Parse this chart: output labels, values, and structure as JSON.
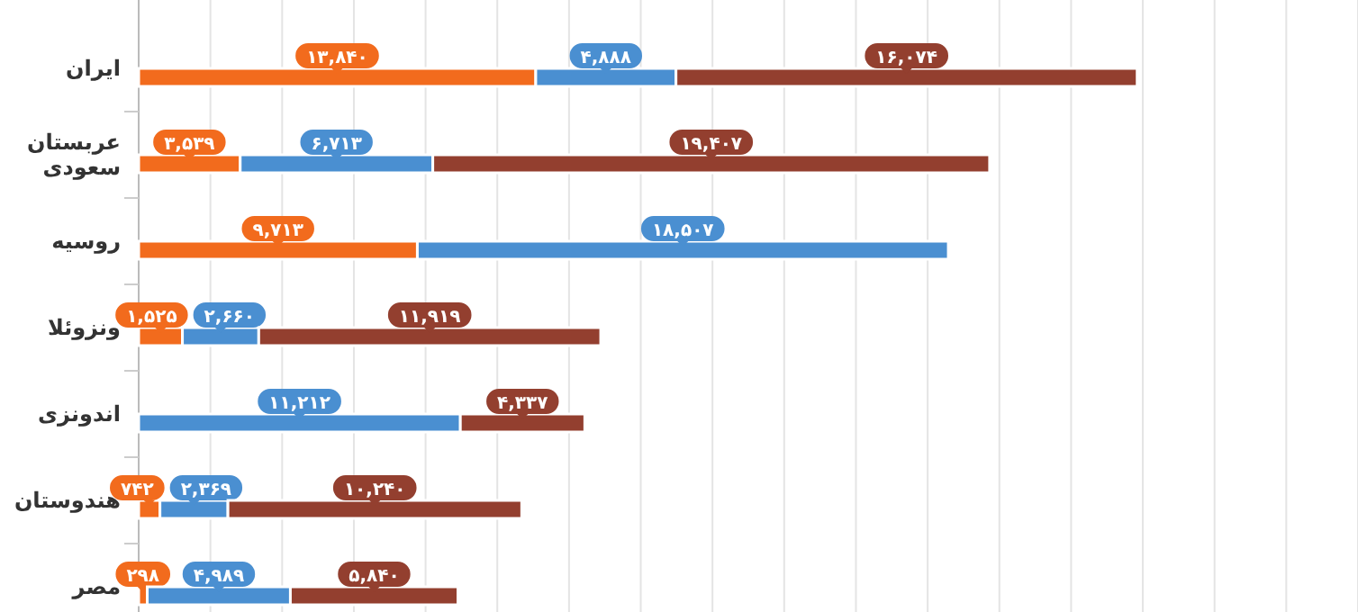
{
  "chart_data": {
    "type": "bar",
    "orientation": "horizontal",
    "stacked": true,
    "categories": [
      "ایران",
      "عربستان سعودی",
      "روسیه",
      "ونزوئلا",
      "اندونزی",
      "هندوستان",
      "مصر"
    ],
    "series": [
      {
        "color": "#f26b1d",
        "values": [
          13840,
          3539,
          9713,
          1525,
          null,
          742,
          298
        ],
        "value_labels": [
          "۱۳,۸۴۰",
          "۳,۵۳۹",
          "۹,۷۱۳",
          "۱,۵۲۵",
          null,
          "۷۴۲",
          "۲۹۸"
        ]
      },
      {
        "color": "#4a8fd1",
        "values": [
          4888,
          6713,
          18507,
          2660,
          11212,
          2369,
          4989
        ],
        "value_labels": [
          "۴,۸۸۸",
          "۶,۷۱۳",
          "۱۸,۵۰۷",
          "۲,۶۶۰",
          "۱۱,۲۱۲",
          "۲,۳۶۹",
          "۴,۹۸۹"
        ]
      },
      {
        "color": "#933f2f",
        "values": [
          16074,
          19407,
          null,
          11919,
          4337,
          10240,
          5840
        ],
        "value_labels": [
          "۱۶,۰۷۴",
          "۱۹,۴۰۷",
          null,
          "۱۱,۹۱۹",
          "۴,۳۳۷",
          "۱۰,۲۴۰",
          "۵,۸۴۰"
        ]
      }
    ],
    "xlim": [
      0,
      42500
    ],
    "xticks": [
      {
        "value": 2500,
        "label": null
      },
      {
        "value": 5000,
        "label": null
      },
      {
        "value": 7500,
        "label": null
      },
      {
        "value": 10000,
        "label": null
      },
      {
        "value": 12500,
        "label": null
      },
      {
        "value": 15000,
        "label": null
      },
      {
        "value": 17500,
        "label": null
      },
      {
        "value": 20000,
        "label": null
      },
      {
        "value": 22500,
        "label": null
      },
      {
        "value": 25000,
        "label": null
      },
      {
        "value": 27500,
        "label": null
      },
      {
        "value": 30000,
        "label": null
      },
      {
        "value": 32500,
        "label": null
      },
      {
        "value": 35000,
        "label": null
      },
      {
        "value": 37500,
        "label": null
      },
      {
        "value": 40000,
        "label": null
      },
      {
        "value": 42500,
        "label": null
      }
    ],
    "grid": "x",
    "tick_labels": "y"
  }
}
